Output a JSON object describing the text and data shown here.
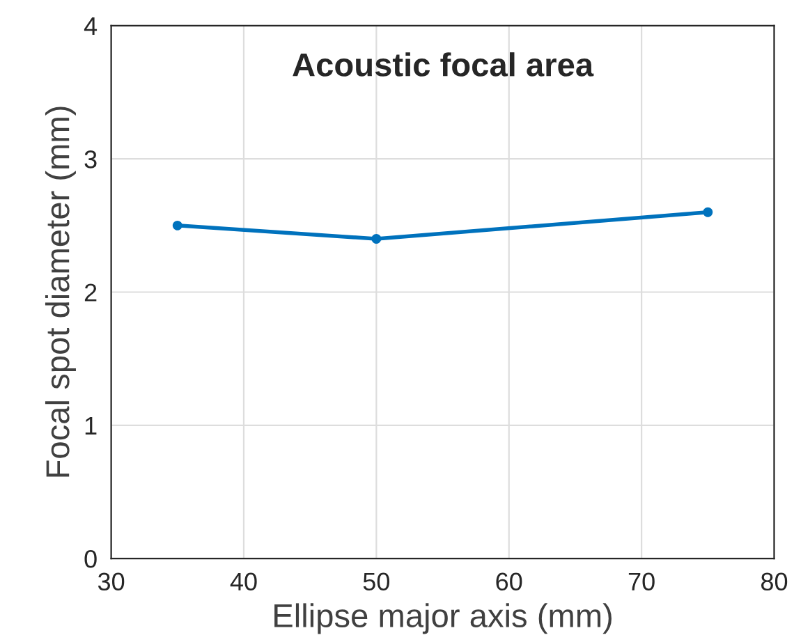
{
  "chart_data": {
    "type": "line",
    "title": "Acoustic focal area",
    "xlabel": "Ellipse major axis (mm)",
    "ylabel": "Focal spot diameter (mm)",
    "x": [
      35,
      50,
      75
    ],
    "series": [
      {
        "color": "#0072bd",
        "values": [
          2.5,
          2.4,
          2.6
        ]
      }
    ],
    "xlim": [
      30,
      80
    ],
    "xticks": [
      30,
      40,
      50,
      60,
      70,
      80
    ],
    "ylim": [
      0,
      4
    ],
    "yticks": [
      0,
      1,
      2,
      3,
      4
    ],
    "grid": true,
    "marker": "circle",
    "line_style": "solid"
  }
}
